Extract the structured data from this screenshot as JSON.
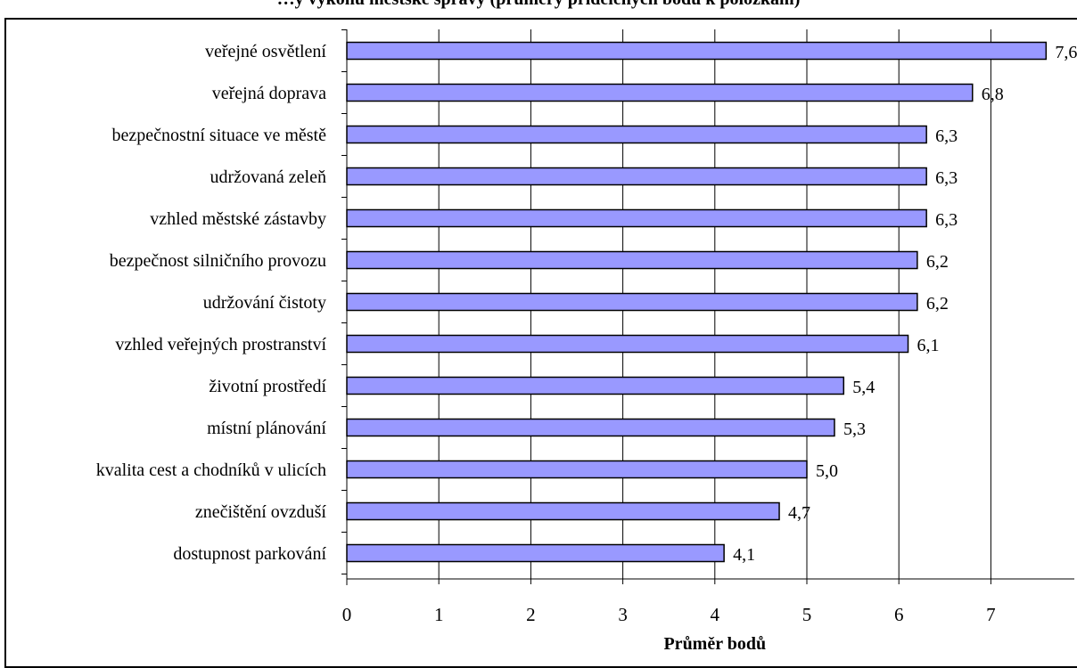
{
  "title": "…y výkonu městské správy (průměry přidělených bodů k položkám)",
  "chart_data": {
    "type": "bar",
    "orientation": "horizontal",
    "title": "…y výkonu městské správy (průměry přidělených bodů k položkám)",
    "xlabel": "Průměr bodů",
    "ylabel": "",
    "xlim": [
      0,
      8
    ],
    "xticks": [
      "0",
      "1",
      "2",
      "3",
      "4",
      "5",
      "6",
      "7",
      "8"
    ],
    "grid": "vertical",
    "bar_color": "#9999ff",
    "categories": [
      "veřejné osvětlení",
      "veřejná doprava",
      "bezpečnostní situace ve městě",
      "udržovaná zeleň",
      "vzhled městské zástavby",
      "bezpečnost silničního provozu",
      "udržování čistoty",
      "vzhled veřejných prostranství",
      "životní prostředí",
      "místní plánování",
      "kvalita cest a chodníků v ulicích",
      "znečištění ovzduší",
      "dostupnost parkování"
    ],
    "values": [
      7.6,
      6.8,
      6.3,
      6.3,
      6.3,
      6.2,
      6.2,
      6.1,
      5.4,
      5.3,
      5.0,
      4.7,
      4.1
    ],
    "value_labels": [
      "7,6",
      "6,8",
      "6,3",
      "6,3",
      "6,3",
      "6,2",
      "6,2",
      "6,1",
      "5,4",
      "5,3",
      "5,0",
      "4,7",
      "4,1"
    ]
  }
}
